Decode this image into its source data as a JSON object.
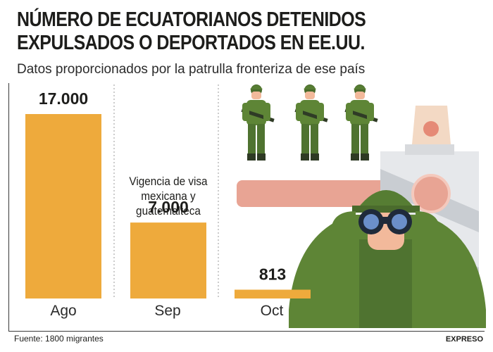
{
  "header": {
    "title_line1": "NÚMERO DE ECUATORIANOS DETENIDOS",
    "title_line2": "EXPULSADOS O DEPORTADOS EN EE.UU.",
    "subtitle": "Datos proporcionados por la patrulla fronteriza de ese país"
  },
  "footer": {
    "source": "Fuente: 1800 migrantes",
    "brand": "EXPRESO"
  },
  "chart_data": {
    "type": "bar",
    "title": "NÚMERO DE ECUATORIANOS DETENIDOS EXPULSADOS O DEPORTADOS EN EE.UU.",
    "subtitle": "Datos proporcionados por la patrulla fronteriza de ese país",
    "categories": [
      "Ago",
      "Sep",
      "Oct"
    ],
    "values": [
      17000,
      7000,
      813
    ],
    "data_labels": [
      "17.000",
      "7.000",
      "813"
    ],
    "annotations": [
      {
        "category": "Sep",
        "text": "Vigencia de visa mexicana y guatemalteca"
      }
    ],
    "xlabel": "",
    "ylabel": "",
    "ylim": [
      0,
      17000
    ],
    "grid": false,
    "legend": "none",
    "colors": {
      "bar": "#eeaa3c"
    }
  },
  "illustration": {
    "icons": [
      "soldier-icon",
      "border-barrier-icon",
      "soldier-binoculars-icon",
      "warning-light-icon"
    ]
  }
}
